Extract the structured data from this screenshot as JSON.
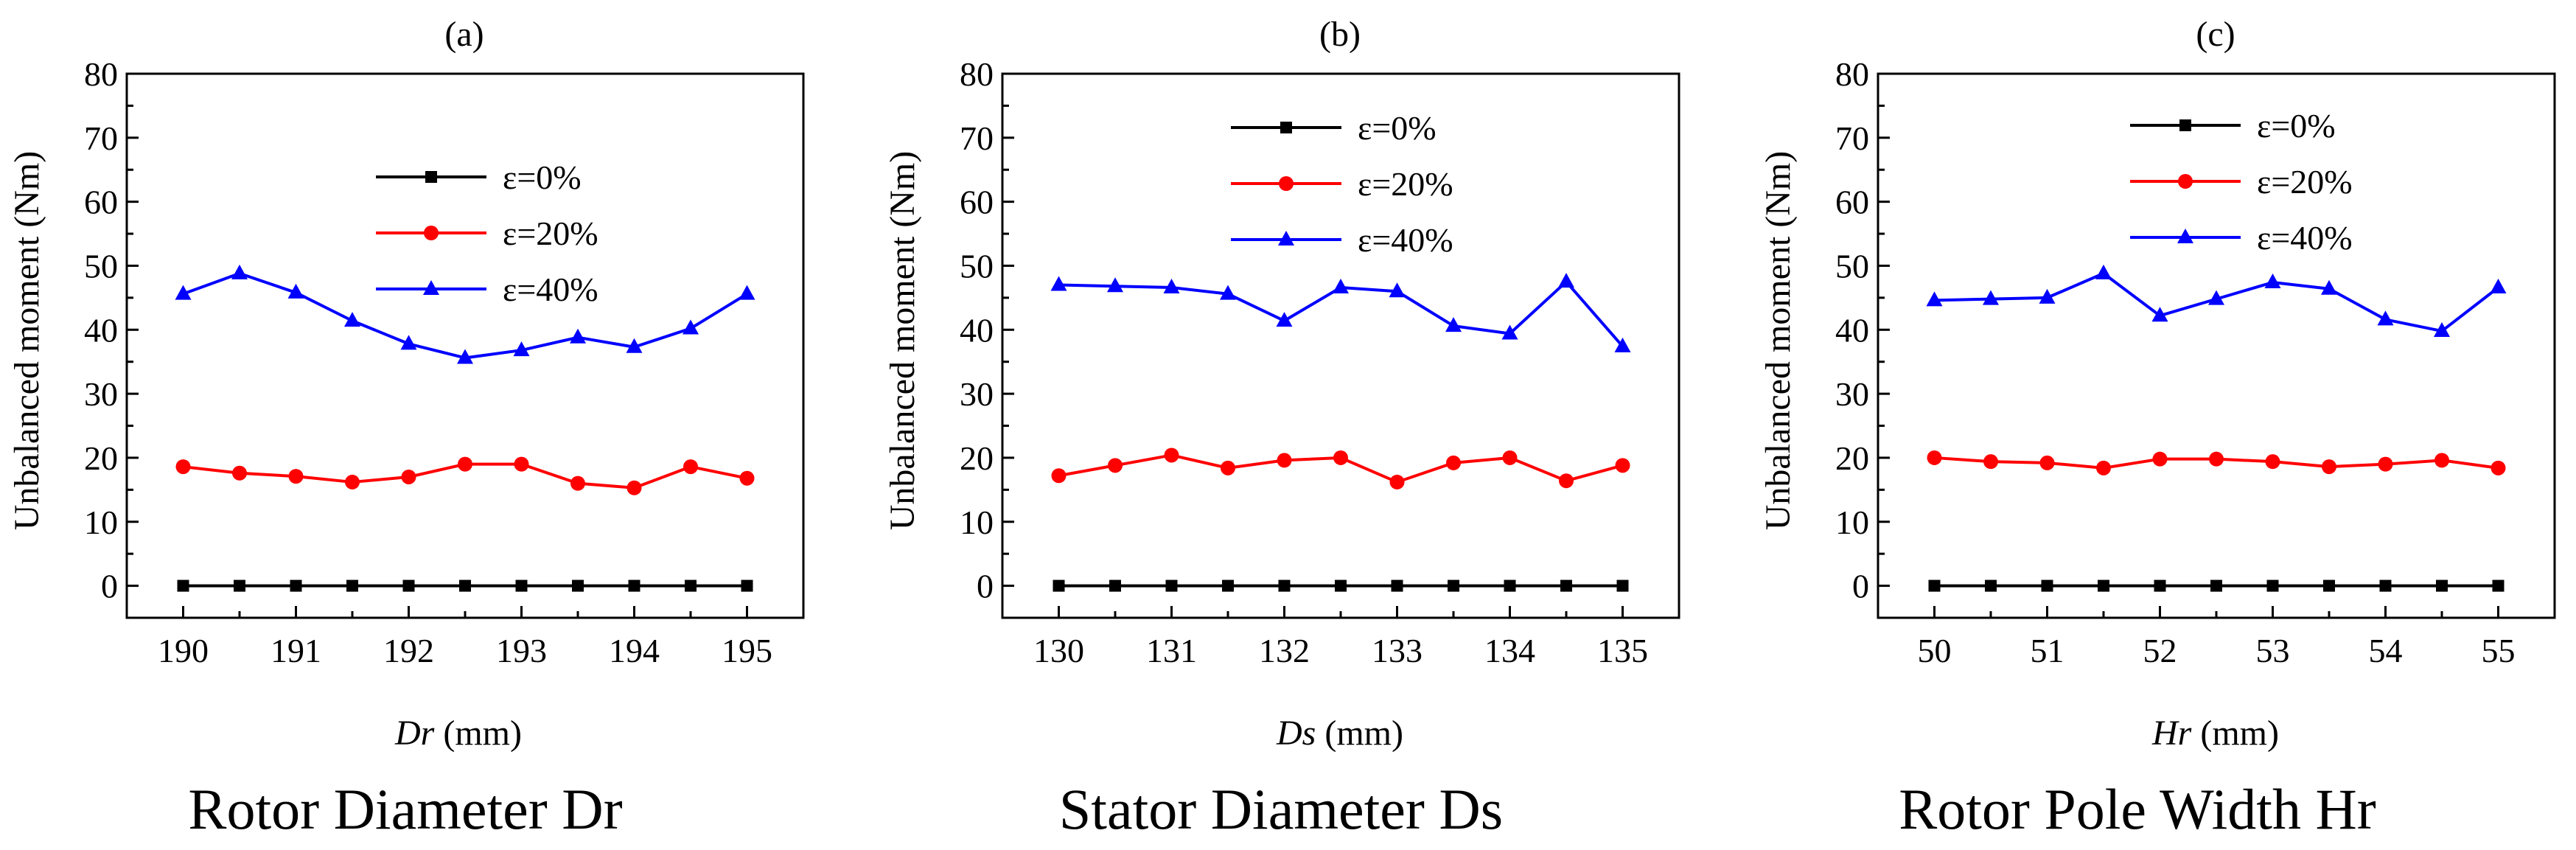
{
  "chart_data": [
    {
      "type": "line",
      "panel_label": "(a)",
      "caption": "Rotor Diameter Dr",
      "xlabel_var": "Dr",
      "xlabel_unit": " (mm)",
      "ylabel": "Unbalanced moment (Nm)",
      "xlim": [
        189.5,
        195.5
      ],
      "ylim": [
        -5,
        80
      ],
      "xticks": [
        190,
        191,
        192,
        193,
        194,
        195
      ],
      "yticks": [
        0,
        10,
        20,
        30,
        40,
        50,
        60,
        70,
        80
      ],
      "x": [
        190,
        190.5,
        191,
        191.5,
        192,
        192.5,
        193,
        193.5,
        194,
        194.5,
        195
      ],
      "legend_position": "upper-center",
      "series": [
        {
          "name": "ε=0%",
          "color": "#000000",
          "marker": "square",
          "values": [
            0,
            0,
            0,
            0,
            0,
            0,
            0,
            0,
            0,
            0,
            0
          ]
        },
        {
          "name": "ε=20%",
          "color": "#ff0000",
          "marker": "circle",
          "values": [
            18.6,
            17.6,
            17.1,
            16.2,
            17.0,
            19.0,
            19.0,
            16.0,
            15.3,
            18.6,
            16.8
          ]
        },
        {
          "name": "ε=40%",
          "color": "#0000ff",
          "marker": "triangle",
          "values": [
            45.6,
            48.8,
            45.8,
            41.4,
            37.8,
            35.6,
            36.8,
            38.8,
            37.3,
            40.2,
            45.6
          ]
        }
      ]
    },
    {
      "type": "line",
      "panel_label": "(b)",
      "caption": "Stator Diameter Ds",
      "xlabel_var": "Ds",
      "xlabel_unit": " (mm)",
      "ylabel": "Unbalanced moment (Nm)",
      "xlim": [
        129.5,
        135.5
      ],
      "ylim": [
        -5,
        80
      ],
      "xticks": [
        130,
        131,
        132,
        133,
        134,
        135
      ],
      "yticks": [
        0,
        10,
        20,
        30,
        40,
        50,
        60,
        70,
        80
      ],
      "x": [
        130,
        130.5,
        131,
        131.5,
        132,
        132.5,
        133,
        133.5,
        134,
        134.5,
        135
      ],
      "legend_position": "upper-center",
      "series": [
        {
          "name": "ε=0%",
          "color": "#000000",
          "marker": "square",
          "values": [
            0,
            0,
            0,
            0,
            0,
            0,
            0,
            0,
            0,
            0,
            0
          ]
        },
        {
          "name": "ε=20%",
          "color": "#ff0000",
          "marker": "circle",
          "values": [
            17.2,
            18.8,
            20.4,
            18.4,
            19.6,
            20.0,
            16.2,
            19.2,
            20.0,
            16.4,
            18.8
          ]
        },
        {
          "name": "ε=40%",
          "color": "#0000ff",
          "marker": "triangle",
          "values": [
            47.0,
            46.8,
            46.6,
            45.6,
            41.4,
            46.6,
            46.0,
            40.6,
            39.4,
            47.5,
            37.4
          ]
        }
      ]
    },
    {
      "type": "line",
      "panel_label": "(c)",
      "caption": "Rotor Pole Width Hr",
      "xlabel_var": "Hr",
      "xlabel_unit": " (mm)",
      "ylabel": "Unbalanced moment (Nm)",
      "xlim": [
        49.5,
        55.5
      ],
      "ylim": [
        -5,
        80
      ],
      "xticks": [
        50,
        51,
        52,
        53,
        54,
        55
      ],
      "yticks": [
        0,
        10,
        20,
        30,
        40,
        50,
        60,
        70,
        80
      ],
      "x": [
        50,
        50.5,
        51,
        51.5,
        52,
        52.5,
        53,
        53.5,
        54,
        54.5,
        55
      ],
      "legend_position": "upper-center",
      "series": [
        {
          "name": "ε=0%",
          "color": "#000000",
          "marker": "square",
          "values": [
            0,
            0,
            0,
            0,
            0,
            0,
            0,
            0,
            0,
            0,
            0
          ]
        },
        {
          "name": "ε=20%",
          "color": "#ff0000",
          "marker": "circle",
          "values": [
            20.0,
            19.4,
            19.2,
            18.4,
            19.8,
            19.8,
            19.4,
            18.6,
            19.0,
            19.6,
            18.4
          ]
        },
        {
          "name": "ε=40%",
          "color": "#0000ff",
          "marker": "triangle",
          "values": [
            44.6,
            44.8,
            45.0,
            48.8,
            42.2,
            44.8,
            47.4,
            46.4,
            41.6,
            39.8,
            46.6
          ]
        }
      ]
    }
  ]
}
